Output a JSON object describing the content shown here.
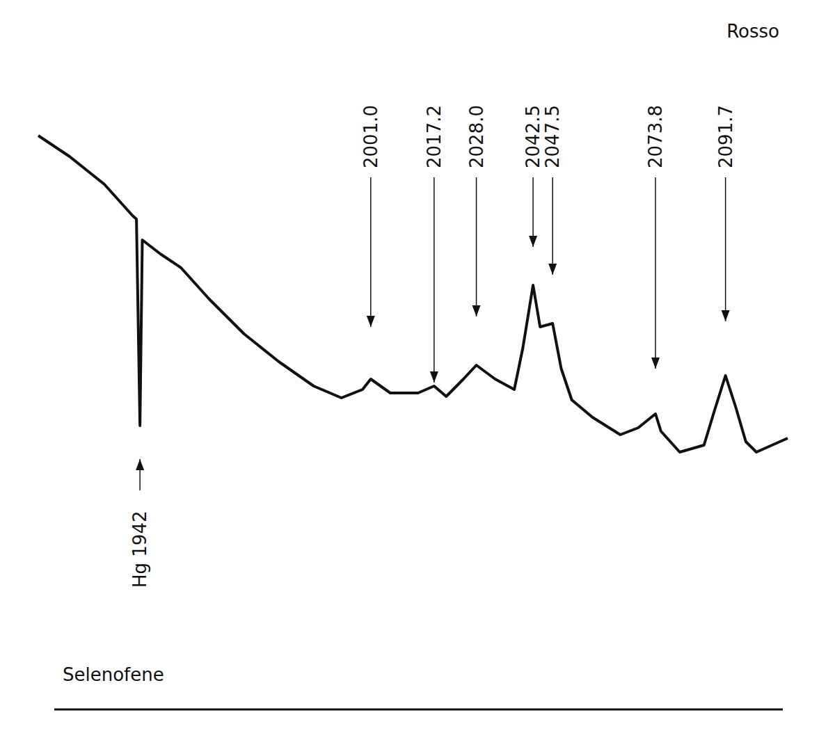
{
  "chart_data": {
    "type": "line",
    "title": "Selenofene",
    "subtitle": "Rosso",
    "x": [
      1916.0,
      1924.0,
      1932.9,
      1940.1,
      1941.1,
      1942.0,
      1942.6,
      1947.2,
      1952.5,
      1959.7,
      1968.6,
      1977.5,
      1986.4,
      1993.5,
      1998.9,
      2001.0,
      2006.0,
      2013.1,
      2017.2,
      2020.3,
      2024.7,
      2028.0,
      2032.8,
      2037.7,
      2039.9,
      2042.5,
      2044.3,
      2047.5,
      2049.7,
      2052.4,
      2057.7,
      2064.8,
      2069.4,
      2073.8,
      2075.2,
      2080.0,
      2086.2,
      2088.9,
      2091.7,
      2094.3,
      2096.9,
      2099.6,
      2107.6
    ],
    "values": [
      101,
      95,
      87,
      78,
      77,
      17.6,
      71,
      67,
      63,
      54,
      44,
      36,
      29,
      25.6,
      28,
      31,
      27,
      27,
      29,
      26,
      31,
      35,
      31,
      28,
      40,
      58,
      46,
      47,
      34,
      25,
      20,
      15,
      17,
      21,
      16,
      10,
      12,
      22,
      32,
      23,
      13,
      10,
      14
    ],
    "color": "#111111",
    "xlim": [
      1916.0,
      2107.6
    ],
    "ylim": [
      0,
      110
    ],
    "tick_labels": false,
    "grid": false,
    "annotations": [
      {
        "text": "2001.0",
        "x": 2001.0,
        "y": 46
      },
      {
        "text": "2017.2",
        "x": 2017.2,
        "y": 30
      },
      {
        "text": "2028.0",
        "x": 2028.0,
        "y": 49
      },
      {
        "text": "2042.5",
        "x": 2042.5,
        "y": 69
      },
      {
        "text": "2047.5",
        "x": 2047.5,
        "y": 61
      },
      {
        "text": "2073.8",
        "x": 2073.8,
        "y": 34
      },
      {
        "text": "2091.7",
        "x": 2091.7,
        "y": 47.6
      },
      {
        "text": "Hg 1942",
        "x": 1942,
        "y": 8
      }
    ]
  }
}
